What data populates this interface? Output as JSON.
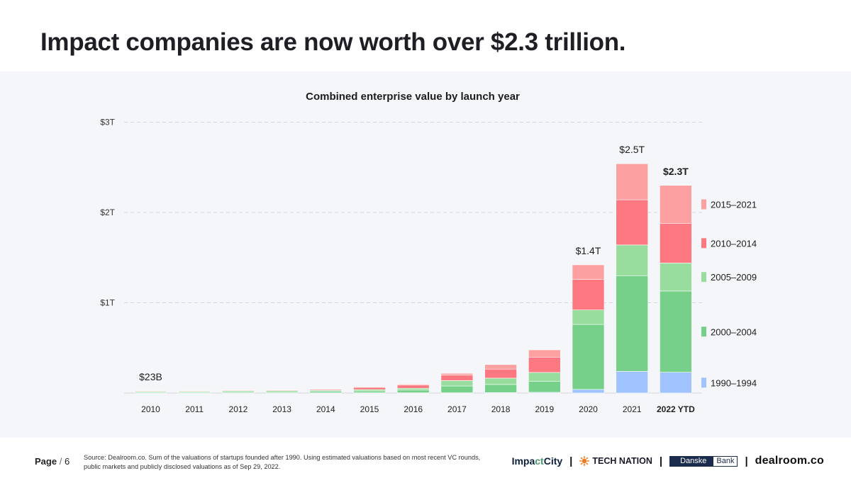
{
  "headline": "Impact companies are now worth over $2.3 trillion.",
  "chart_data": {
    "type": "bar",
    "stacked": true,
    "title": "Combined enterprise value by launch year",
    "xlabel": "",
    "ylabel": "",
    "unit": "trillion USD",
    "ylim": [
      0,
      3
    ],
    "y_ticks": [
      1,
      2,
      3
    ],
    "y_tick_labels": [
      "$1T",
      "$2T",
      "$3T"
    ],
    "grid": true,
    "legend_position": "right",
    "categories": [
      "2010",
      "2011",
      "2012",
      "2013",
      "2014",
      "2015",
      "2016",
      "2017",
      "2018",
      "2019",
      "2020",
      "2021",
      "2022 YTD"
    ],
    "bold_categories": [
      "2022 YTD"
    ],
    "series": [
      {
        "name": "1990–1994",
        "color": "#a0c4ff",
        "values": [
          0.003,
          0.003,
          0.003,
          0.003,
          0.003,
          0.003,
          0.003,
          0.003,
          0.005,
          0.008,
          0.04,
          0.24,
          0.23
        ]
      },
      {
        "name": "2000–2004",
        "color": "#77d08a",
        "values": [
          0.01,
          0.01,
          0.012,
          0.012,
          0.015,
          0.02,
          0.03,
          0.075,
          0.09,
          0.12,
          0.72,
          1.06,
          0.9
        ]
      },
      {
        "name": "2005–2009",
        "color": "#98dc9e",
        "values": [
          0.007,
          0.007,
          0.01,
          0.012,
          0.012,
          0.015,
          0.02,
          0.06,
          0.07,
          0.1,
          0.16,
          0.34,
          0.31
        ]
      },
      {
        "name": "2010–2014",
        "color": "#fd7880",
        "values": [
          0.003,
          0.003,
          0.005,
          0.005,
          0.01,
          0.025,
          0.035,
          0.06,
          0.1,
          0.17,
          0.34,
          0.5,
          0.44
        ]
      },
      {
        "name": "2015–2021",
        "color": "#fca0a2",
        "values": [
          0,
          0,
          0,
          0,
          0.003,
          0.005,
          0.01,
          0.02,
          0.05,
          0.08,
          0.16,
          0.4,
          0.42
        ]
      }
    ],
    "annotations": [
      {
        "category": "2010",
        "label": "$23B",
        "bold": false
      },
      {
        "category": "2020",
        "label": "$1.4T",
        "bold": false
      },
      {
        "category": "2021",
        "label": "$2.5T",
        "bold": false
      },
      {
        "category": "2022 YTD",
        "label": "$2.3T",
        "bold": true
      }
    ]
  },
  "footer": {
    "page_word": "Page",
    "page_sep": "/",
    "page_number": "6",
    "source": "Source: Dealroom.co. Sum of the valuations of startups founded after 1990. Using estimated valuations based on most recent VC rounds, public markets and publicly disclosed valuations as of Sep 29, 2022.",
    "brands": {
      "impactcity_a": "Impa",
      "impactcity_b": "ct",
      "impactcity_c": "City",
      "separator": "|",
      "technation": "TECH NATION",
      "danske_1": "Danske",
      "danske_2": "Bank",
      "dealroom": "dealroom.co"
    }
  },
  "colors": {
    "panel_bg": "#f5f6f9",
    "grid": "#d6d8de",
    "text": "#1d1d1f"
  }
}
